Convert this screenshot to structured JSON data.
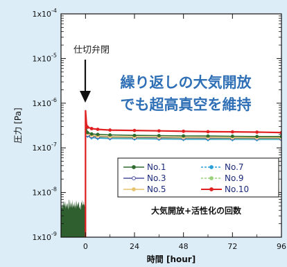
{
  "chart_data": {
    "type": "line",
    "title": "",
    "xlabel": "時間 [hour]",
    "ylabel": "圧力 [Pa]",
    "x_ticks": [
      0,
      24,
      48,
      72,
      96
    ],
    "xlim": [
      -12,
      96
    ],
    "ylim": [
      1e-09,
      0.0001
    ],
    "y_scale": "log",
    "y_ticks": [
      {
        "value": 1e-09,
        "label": "1x10",
        "exp": "-9"
      },
      {
        "value": 1e-08,
        "label": "1x10",
        "exp": "-8"
      },
      {
        "value": 1e-07,
        "label": "1x10",
        "exp": "-7"
      },
      {
        "value": 1e-06,
        "label": "1x10",
        "exp": "-6"
      },
      {
        "value": 1e-05,
        "label": "1x10",
        "exp": "-5"
      },
      {
        "value": 0.0001,
        "label": "1x10",
        "exp": "-4"
      }
    ],
    "grid": false,
    "legend_position": "lower-right",
    "legend_title": "大気開放+活性化の回数",
    "series": [
      {
        "name": "No.1",
        "color": "#2e6b2e",
        "marker": "circle",
        "x": [
          0,
          0.5,
          1,
          3,
          6,
          12,
          24,
          36,
          48,
          60,
          72,
          84,
          96
        ],
        "y": [
          6e-07,
          2.6e-07,
          2.2e-07,
          2.05e-07,
          2e-07,
          1.95e-07,
          1.9e-07,
          1.88e-07,
          1.85e-07,
          1.84e-07,
          1.82e-07,
          1.8e-07,
          1.8e-07
        ]
      },
      {
        "name": "No.3",
        "color": "#4a4f9e",
        "marker": "square",
        "x": [
          0,
          0.5,
          1,
          3,
          6,
          12,
          24,
          36,
          48,
          60,
          72,
          84,
          96
        ],
        "y": [
          5.5e-07,
          2.3e-07,
          2e-07,
          1.85e-07,
          1.8e-07,
          1.75e-07,
          1.72e-07,
          1.7e-07,
          1.68e-07,
          1.67e-07,
          1.66e-07,
          1.65e-07,
          1.65e-07
        ]
      },
      {
        "name": "No.5",
        "color": "#e6c46e",
        "marker": "triangle",
        "x": [
          0,
          0.5,
          1,
          3,
          6,
          12,
          24,
          36,
          48,
          60,
          72,
          84,
          96
        ],
        "y": [
          5.8e-07,
          2.4e-07,
          2.1e-07,
          1.9e-07,
          1.85e-07,
          1.8e-07,
          1.77e-07,
          1.75e-07,
          1.73e-07,
          1.72e-07,
          1.71e-07,
          1.7e-07,
          1.7e-07
        ]
      },
      {
        "name": "No.7",
        "color": "#2aa0d8",
        "marker": "diamond",
        "x": [
          0,
          0.5,
          1,
          3,
          6,
          12,
          24,
          36,
          48,
          60,
          72,
          84,
          96
        ],
        "y": [
          5.2e-07,
          2.1e-07,
          1.85e-07,
          1.7e-07,
          1.65e-07,
          1.62e-07,
          1.6e-07,
          1.58e-07,
          1.56e-07,
          1.55e-07,
          1.55e-07,
          1.54e-07,
          1.54e-07
        ]
      },
      {
        "name": "No.9",
        "color": "#9bd17a",
        "marker": "circle",
        "x": [
          0,
          0.5,
          1,
          3,
          6,
          12,
          24,
          36,
          48,
          60,
          72,
          84,
          96
        ],
        "y": [
          5.4e-07,
          2.2e-07,
          1.95e-07,
          1.8e-07,
          1.75e-07,
          1.7e-07,
          1.67e-07,
          1.65e-07,
          1.63e-07,
          1.62e-07,
          1.61e-07,
          1.6e-07,
          1.6e-07
        ]
      },
      {
        "name": "No.10",
        "color": "#e02020",
        "marker": "circle",
        "x": [
          0,
          0.5,
          1,
          3,
          6,
          12,
          24,
          36,
          48,
          60,
          72,
          84,
          96
        ],
        "y": [
          7e-07,
          3.4e-07,
          2.9e-07,
          2.7e-07,
          2.6e-07,
          2.5e-07,
          2.45e-07,
          2.4e-07,
          2.35e-07,
          2.3e-07,
          2.28e-07,
          2.25e-07,
          2.2e-07
        ]
      }
    ],
    "baseline_region": {
      "x": [
        -12,
        0
      ],
      "y_low": 1e-09,
      "y_high": [
        4e-09,
        7e-09
      ],
      "color": "#2f5e2f"
    },
    "annotations": [
      {
        "text": "仕切弁閉",
        "x": 0,
        "arrow_to_y": 6e-07
      },
      {
        "text": "繰り返しの大気開放"
      },
      {
        "text": "でも超高真空を維持"
      }
    ]
  }
}
